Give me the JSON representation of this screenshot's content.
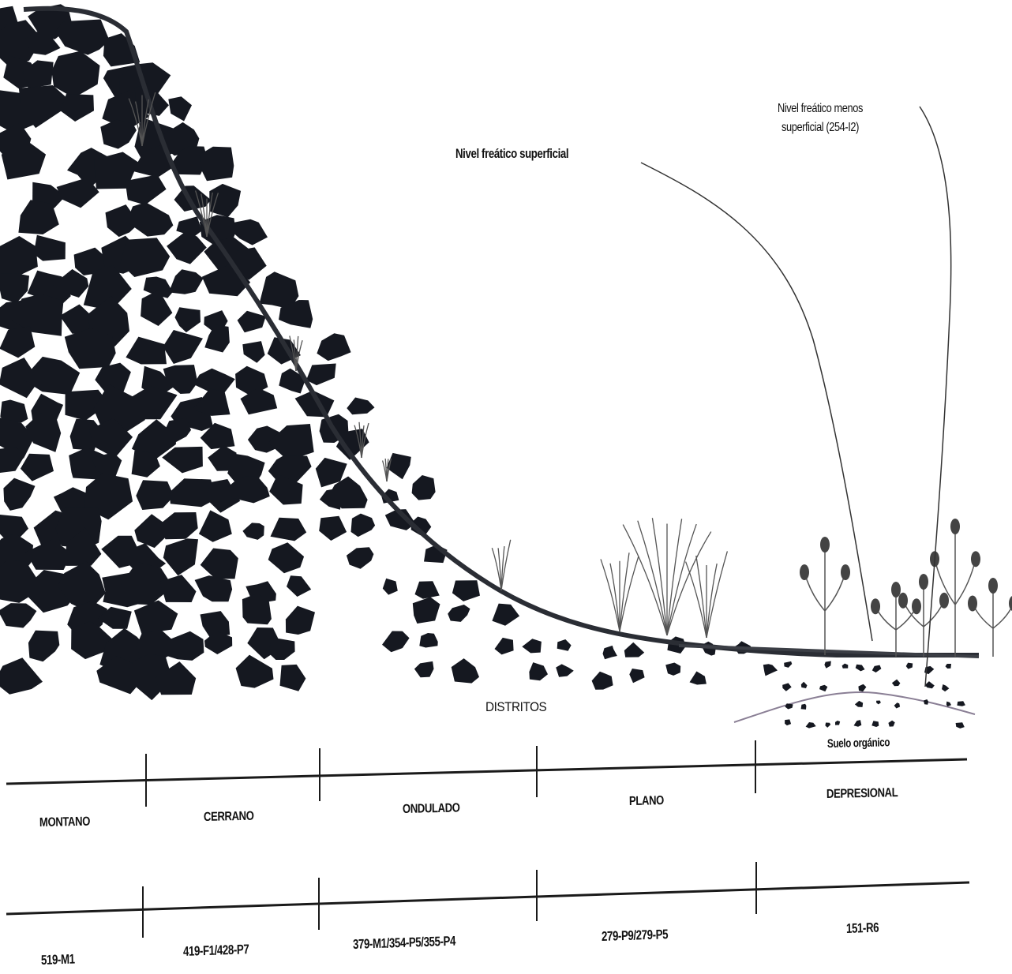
{
  "annotations": {
    "water_table_shallow": "Nivel freático superficial",
    "water_table_deeper_line1": "Nivel freático menos",
    "water_table_deeper_line2": "superficial (254-I2)",
    "districts_title": "DISTRITOS",
    "organic_soil": "Suelo orgánico"
  },
  "districts": [
    {
      "name": "MONTANO",
      "code": "519-M1"
    },
    {
      "name": "CERRANO",
      "code": "419-F1/428-P7"
    },
    {
      "name": "ONDULADO",
      "code": "379-M1/354-P5/355-P4"
    },
    {
      "name": "PLANO",
      "code": "279-P9/279-P5"
    },
    {
      "name": "DEPRESIONAL",
      "code": "151-R6"
    }
  ],
  "colors": {
    "rock": "#151820",
    "ground_line": "#2a2d34",
    "plant": "#555555",
    "flower": "#444444",
    "organic_soil_line": "#8a7f95",
    "table_line": "#1a1a1a"
  }
}
